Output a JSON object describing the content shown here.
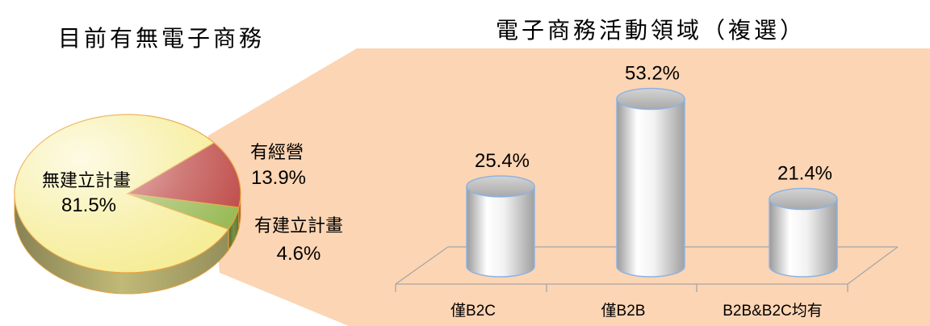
{
  "chart_data": [
    {
      "type": "pie",
      "title": "目前有無電子商務",
      "style": "3d",
      "slices": [
        {
          "label": "無建立計畫",
          "value": 81.5,
          "value_label": "81.5%",
          "color": "#f6ed98"
        },
        {
          "label": "有經營",
          "value": 13.9,
          "value_label": "13.9%",
          "color": "#c0504d"
        },
        {
          "label": "有建立計畫",
          "value": 4.6,
          "value_label": "4.6%",
          "color": "#9bbb59"
        }
      ]
    },
    {
      "type": "bar",
      "title": "電子商務活動領域（複選）",
      "style": "3d-cylinder",
      "categories": [
        "僅B2C",
        "僅B2B",
        "B2B&B2C均有"
      ],
      "values": [
        25.4,
        53.2,
        21.4
      ],
      "value_labels": [
        "25.4%",
        "53.2%",
        "21.4%"
      ],
      "grid": false
    }
  ],
  "colors": {
    "callout_background": "#fcd5b4",
    "pie_outline": "#e8a33c",
    "bar_outline": "#8db3e2",
    "floor_line": "#a6a6a6"
  }
}
